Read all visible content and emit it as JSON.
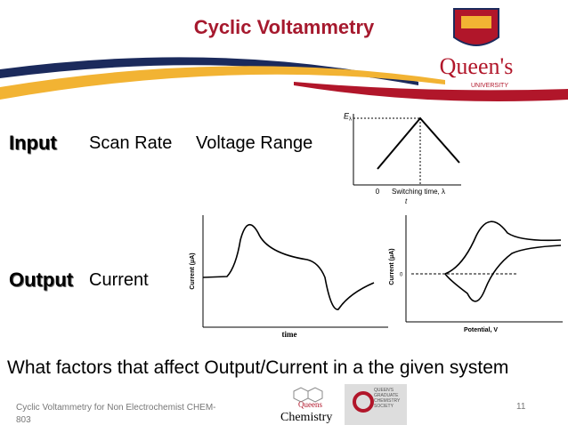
{
  "header": {
    "title": "Cyclic Voltammetry",
    "logo_name": "Queen's",
    "logo_sub": "UNIVERSITY"
  },
  "input": {
    "label": "Input",
    "items": [
      "Scan Rate",
      "Voltage Range"
    ]
  },
  "output": {
    "label": "Output",
    "item": "Current"
  },
  "graphs": {
    "waveform": {
      "y_label": "E",
      "y_sub": "λ",
      "origin": "0",
      "x_label": "Switching time, λ",
      "t_label": "t"
    },
    "current_time": {
      "y_label": "Current (μA)",
      "x_label": "time"
    },
    "current_potential": {
      "y_label": "Current (μA)",
      "zero": "0",
      "x_label": "Potential, V"
    }
  },
  "question": "What factors that affect Output/Current in a the given system",
  "footer": {
    "text": "Cyclic Voltammetry for Non Electrochemist CHEM-803",
    "page": "11",
    "logo1_top": "Queens",
    "logo1_bottom": "Chemistry",
    "logo2": "QUEEN'S GRADUATE CHEMISTRY SOCIETY"
  }
}
